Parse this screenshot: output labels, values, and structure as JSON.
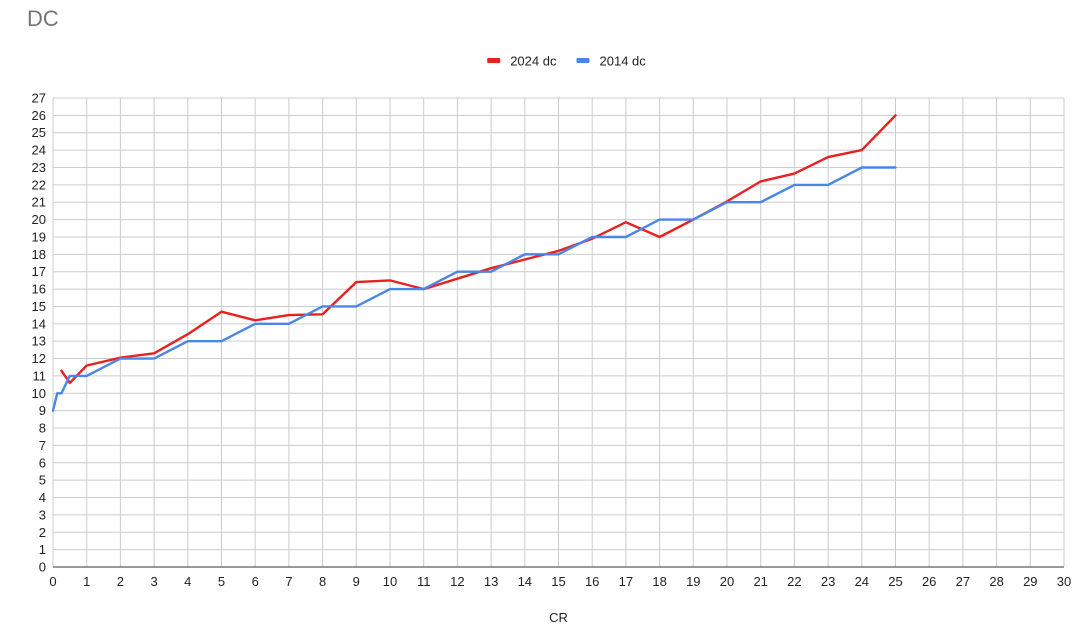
{
  "chart_data": {
    "type": "line",
    "title": "DC",
    "xlabel": "CR",
    "ylabel": "",
    "xlim": [
      0,
      30
    ],
    "ylim": [
      0,
      27
    ],
    "x_ticks": [
      0,
      1,
      2,
      3,
      4,
      5,
      6,
      7,
      8,
      9,
      10,
      11,
      12,
      13,
      14,
      15,
      16,
      17,
      18,
      19,
      20,
      21,
      22,
      23,
      24,
      25,
      26,
      27,
      28,
      29,
      30
    ],
    "y_ticks": [
      0,
      1,
      2,
      3,
      4,
      5,
      6,
      7,
      8,
      9,
      10,
      11,
      12,
      13,
      14,
      15,
      16,
      17,
      18,
      19,
      20,
      21,
      22,
      23,
      24,
      25,
      26,
      27
    ],
    "grid": true,
    "legend_position": "top",
    "series": [
      {
        "name": "2024 dc",
        "color": "#e8201e",
        "points": [
          [
            0.25,
            11.3
          ],
          [
            0.5,
            10.6
          ],
          [
            1,
            11.6
          ],
          [
            2,
            12.05
          ],
          [
            3,
            12.3
          ],
          [
            4,
            13.4
          ],
          [
            5,
            14.7
          ],
          [
            6,
            14.2
          ],
          [
            7,
            14.5
          ],
          [
            8,
            14.55
          ],
          [
            9,
            16.4
          ],
          [
            10,
            16.5
          ],
          [
            11,
            16.0
          ],
          [
            12,
            16.6
          ],
          [
            13,
            17.2
          ],
          [
            14,
            17.7
          ],
          [
            15,
            18.2
          ],
          [
            16,
            18.9
          ],
          [
            17,
            19.85
          ],
          [
            18,
            19.0
          ],
          [
            19,
            20.0
          ],
          [
            20,
            21.05
          ],
          [
            21,
            22.2
          ],
          [
            22,
            22.65
          ],
          [
            23,
            23.6
          ],
          [
            24,
            24.0
          ],
          [
            25,
            26.0
          ]
        ]
      },
      {
        "name": "2014 dc",
        "color": "#4a86e8",
        "points": [
          [
            0,
            9.0
          ],
          [
            0.125,
            10.0
          ],
          [
            0.25,
            10.0
          ],
          [
            0.5,
            11.0
          ],
          [
            1,
            11.0
          ],
          [
            2,
            12.0
          ],
          [
            3,
            12.0
          ],
          [
            4,
            13.0
          ],
          [
            5,
            13.0
          ],
          [
            6,
            14.0
          ],
          [
            7,
            14.0
          ],
          [
            8,
            15.0
          ],
          [
            9,
            15.0
          ],
          [
            10,
            16.0
          ],
          [
            11,
            16.0
          ],
          [
            12,
            17.0
          ],
          [
            13,
            17.0
          ],
          [
            14,
            18.0
          ],
          [
            15,
            18.0
          ],
          [
            16,
            19.0
          ],
          [
            17,
            19.0
          ],
          [
            18,
            20.0
          ],
          [
            19,
            20.0
          ],
          [
            20,
            21.0
          ],
          [
            21,
            21.0
          ],
          [
            22,
            22.0
          ],
          [
            23,
            22.0
          ],
          [
            24,
            23.0
          ],
          [
            25,
            23.0
          ]
        ]
      }
    ]
  }
}
